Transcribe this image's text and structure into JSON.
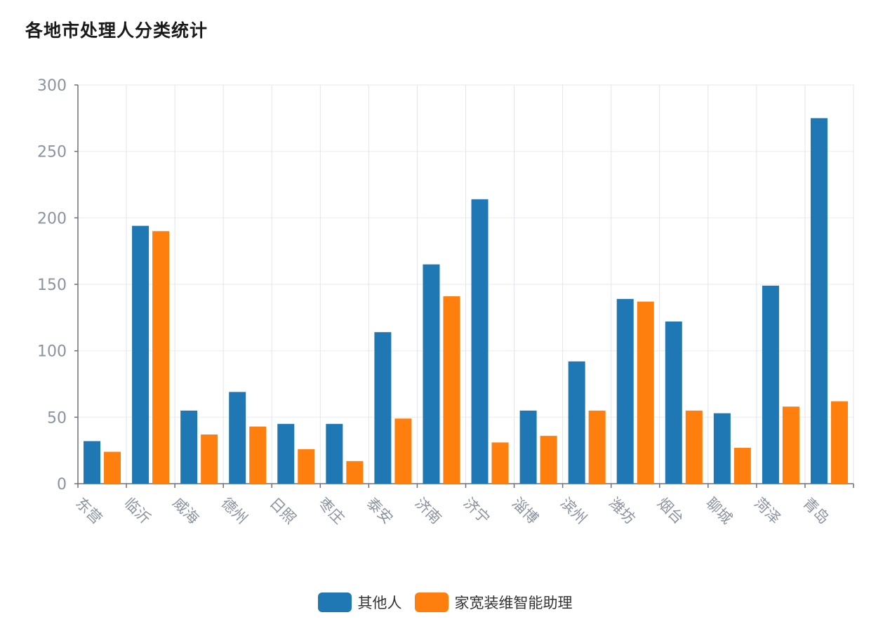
{
  "page": {
    "title": "各地市处理人分类统计"
  },
  "chart_data": {
    "type": "bar",
    "title": "各地市处理人分类统计",
    "categories": [
      "东营",
      "临沂",
      "威海",
      "德州",
      "日照",
      "枣庄",
      "泰安",
      "济南",
      "济宁",
      "淄博",
      "滨州",
      "潍坊",
      "烟台",
      "聊城",
      "菏泽",
      "青岛"
    ],
    "series": [
      {
        "name": "其他人",
        "color": "#1f77b4",
        "values": [
          32,
          194,
          55,
          69,
          45,
          45,
          114,
          165,
          214,
          55,
          92,
          139,
          122,
          53,
          149,
          275
        ]
      },
      {
        "name": "家宽装维智能助理",
        "color": "#ff7f0e",
        "values": [
          24,
          190,
          37,
          43,
          26,
          17,
          49,
          141,
          31,
          36,
          55,
          137,
          55,
          27,
          58,
          62
        ]
      }
    ],
    "ylim": [
      0,
      300
    ],
    "yticks": [
      0,
      50,
      100,
      150,
      200,
      250,
      300
    ],
    "xlabel": "",
    "ylabel": "",
    "grid": true,
    "legend_position": "bottom-center",
    "x_tick_rotation": "diagonal"
  }
}
